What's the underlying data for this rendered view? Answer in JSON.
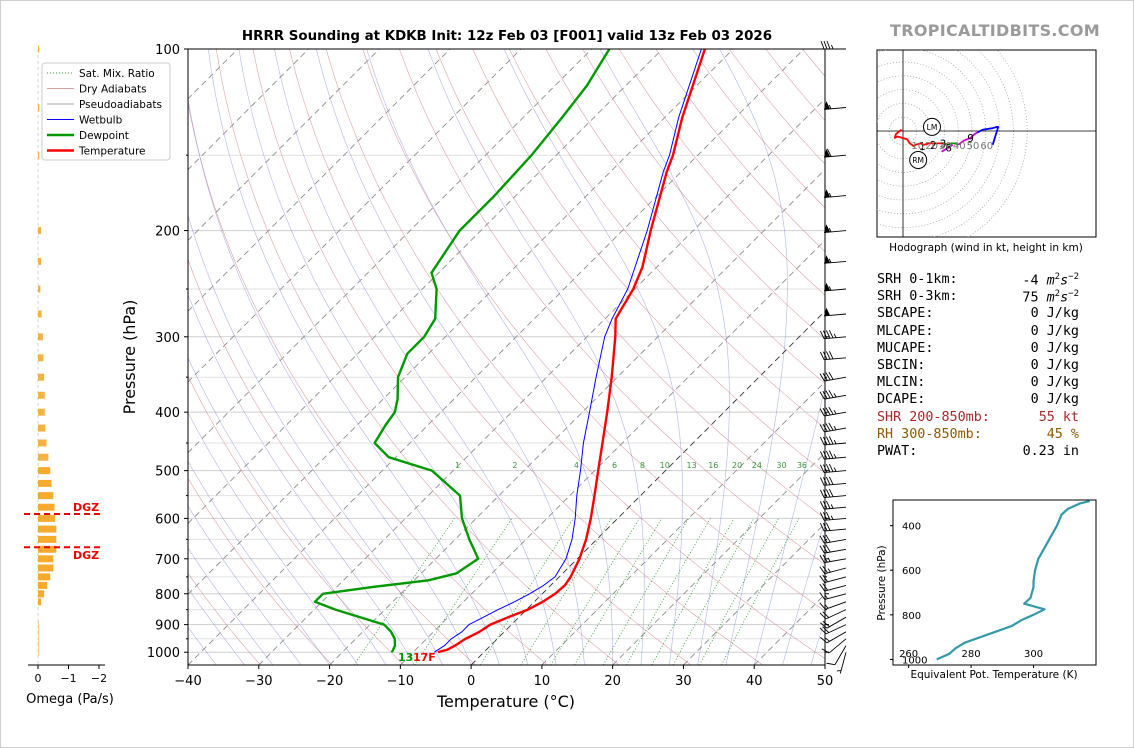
{
  "title": "HRRR Sounding at KDKB Init: 12z Feb 03 [F001] valid 13z Feb 03 2026",
  "brand": "TROPICALTIDBITS.COM",
  "colors": {
    "temperature": "#ff0000",
    "dewpoint": "#009900",
    "wetbulb": "#0000ff",
    "dgz": "#ee0000",
    "omega_bar": "#f5a623",
    "theta_e": "#3399aa",
    "shr": "#a52a2a",
    "rh": "#8b5a00"
  },
  "chart_data": [
    {
      "type": "line",
      "name": "skew-t",
      "xlabel": "Temperature (°C)",
      "ylabel": "Pressure (hPa)",
      "xlim": [
        -40,
        50
      ],
      "ylim": [
        1050,
        100
      ],
      "y_scale": "log",
      "x_ticks": [
        "−40",
        "−30",
        "−20",
        "−10",
        "0",
        "10",
        "20",
        "30",
        "40",
        "50"
      ],
      "y_ticks": [
        "100",
        "200",
        "300",
        "400",
        "500",
        "600",
        "700",
        "800",
        "900",
        "1000"
      ],
      "legend": {
        "placement": "top-left",
        "entries": [
          "Sat. Mix. Ratio",
          "Dry Adiabats",
          "Pseudoadiabats",
          "Wetbulb",
          "Dewpoint",
          "Temperature"
        ]
      },
      "mixing_ratio_labels": [
        "1",
        "2",
        "4",
        "6",
        "8",
        "10",
        "13",
        "16",
        "20",
        "24",
        "30",
        "36"
      ],
      "surface_labels": {
        "dewpoint": "13",
        "temperature": "17F"
      },
      "series": [
        {
          "name": "Temperature",
          "points": [
            [
              1000,
              -6.5
            ],
            [
              990,
              -5.5
            ],
            [
              975,
              -5
            ],
            [
              950,
              -4.5
            ],
            [
              925,
              -3.5
            ],
            [
              900,
              -3
            ],
            [
              875,
              -1.5
            ],
            [
              850,
              0.2
            ],
            [
              825,
              1.2
            ],
            [
              800,
              1.8
            ],
            [
              775,
              2
            ],
            [
              750,
              1.6
            ],
            [
              700,
              0.3
            ],
            [
              650,
              -1.5
            ],
            [
              600,
              -3.8
            ],
            [
              550,
              -6.5
            ],
            [
              500,
              -9.5
            ],
            [
              450,
              -12.8
            ],
            [
              400,
              -16.5
            ],
            [
              350,
              -20.8
            ],
            [
              300,
              -26
            ],
            [
              280,
              -28.5
            ],
            [
              250,
              -30.2
            ],
            [
              230,
              -32
            ],
            [
              200,
              -36
            ],
            [
              160,
              -42
            ],
            [
              150,
              -43.5
            ],
            [
              130,
              -47.5
            ],
            [
              100,
              -54
            ]
          ]
        },
        {
          "name": "Dewpoint",
          "points": [
            [
              1000,
              -13
            ],
            [
              975,
              -13.5
            ],
            [
              950,
              -14.5
            ],
            [
              925,
              -16
            ],
            [
              900,
              -18
            ],
            [
              850,
              -27
            ],
            [
              825,
              -31
            ],
            [
              800,
              -31
            ],
            [
              780,
              -25
            ],
            [
              760,
              -18
            ],
            [
              740,
              -15
            ],
            [
              700,
              -14
            ],
            [
              650,
              -18
            ],
            [
              600,
              -22
            ],
            [
              550,
              -25.5
            ],
            [
              500,
              -33
            ],
            [
              475,
              -41
            ],
            [
              450,
              -45
            ],
            [
              420,
              -46
            ],
            [
              400,
              -46.5
            ],
            [
              380,
              -48
            ],
            [
              350,
              -51
            ],
            [
              320,
              -53
            ],
            [
              300,
              -53
            ],
            [
              280,
              -54
            ],
            [
              250,
              -58
            ],
            [
              235,
              -61
            ],
            [
              200,
              -63
            ],
            [
              175,
              -63
            ],
            [
              150,
              -63.5
            ],
            [
              130,
              -64.5
            ],
            [
              115,
              -65.5
            ],
            [
              100,
              -67.5
            ]
          ]
        },
        {
          "name": "Wetbulb",
          "points": [
            [
              1000,
              -7
            ],
            [
              975,
              -6.5
            ],
            [
              950,
              -6.5
            ],
            [
              925,
              -6
            ],
            [
              900,
              -6
            ],
            [
              875,
              -5
            ],
            [
              850,
              -4
            ],
            [
              825,
              -2.8
            ],
            [
              800,
              -1.8
            ],
            [
              775,
              -1
            ],
            [
              750,
              -0.6
            ],
            [
              700,
              -1.6
            ],
            [
              650,
              -3.5
            ],
            [
              600,
              -6
            ],
            [
              550,
              -9
            ],
            [
              500,
              -12
            ],
            [
              450,
              -15.5
            ],
            [
              400,
              -19
            ],
            [
              350,
              -23
            ],
            [
              300,
              -27.5
            ],
            [
              280,
              -29
            ],
            [
              250,
              -31
            ],
            [
              200,
              -36.5
            ],
            [
              160,
              -42.5
            ],
            [
              150,
              -44
            ],
            [
              130,
              -48
            ],
            [
              100,
              -54.5
            ]
          ]
        }
      ]
    },
    {
      "type": "bar",
      "name": "omega",
      "xlabel": "Omega (Pa/s)",
      "x_ticks": [
        "0",
        "−1",
        "−2"
      ],
      "dgz_label": "DGZ",
      "dgz_bounds_hpa": [
        590,
        670
      ],
      "values": [
        [
          1000,
          0.01
        ],
        [
          975,
          0.01
        ],
        [
          950,
          0.01
        ],
        [
          925,
          0.01
        ],
        [
          900,
          0.01
        ],
        [
          875,
          0.0
        ],
        [
          850,
          0.0
        ],
        [
          825,
          0.05
        ],
        [
          800,
          0.1
        ],
        [
          775,
          0.15
        ],
        [
          750,
          0.2
        ],
        [
          725,
          0.25
        ],
        [
          700,
          0.25
        ],
        [
          675,
          0.3
        ],
        [
          650,
          0.3
        ],
        [
          625,
          0.3
        ],
        [
          600,
          0.28
        ],
        [
          575,
          0.27
        ],
        [
          550,
          0.25
        ],
        [
          525,
          0.22
        ],
        [
          500,
          0.2
        ],
        [
          475,
          0.17
        ],
        [
          450,
          0.14
        ],
        [
          425,
          0.12
        ],
        [
          400,
          0.11
        ],
        [
          375,
          0.11
        ],
        [
          350,
          0.1
        ],
        [
          325,
          0.09
        ],
        [
          300,
          0.08
        ],
        [
          275,
          0.06
        ],
        [
          250,
          0.04
        ],
        [
          225,
          0.05
        ],
        [
          200,
          0.05
        ],
        [
          150,
          0.02
        ],
        [
          125,
          0.02
        ],
        [
          100,
          0.02
        ]
      ]
    },
    {
      "type": "line",
      "name": "hodograph",
      "caption": "Hodograph (wind in kt, height in km)",
      "ring_labels": [
        "10",
        "20",
        "30",
        "40",
        "50",
        "60"
      ],
      "height_labels": [
        "1",
        "2",
        "3",
        "6",
        "9"
      ],
      "motion_labels": [
        "LM",
        "RM"
      ],
      "segments": [
        {
          "color": "#ff0000",
          "points": [
            [
              -1,
              1
            ],
            [
              -5,
              -2
            ],
            [
              -6,
              -5
            ],
            [
              -4,
              -4
            ],
            [
              3,
              -6
            ],
            [
              5,
              -9
            ],
            [
              8,
              -11
            ],
            [
              9,
              -10
            ],
            [
              13,
              -9
            ],
            [
              15,
              -10
            ],
            [
              19,
              -9
            ],
            [
              25,
              -9
            ],
            [
              30,
              -9
            ]
          ]
        },
        {
          "color": "#009900",
          "points": [
            [
              30,
              -9
            ],
            [
              33,
              -10
            ],
            [
              35,
              -9
            ],
            [
              38,
              -9
            ],
            [
              40,
              -10
            ]
          ]
        },
        {
          "color": "#cc00cc",
          "points": [
            [
              40,
              -10
            ],
            [
              44,
              -7
            ],
            [
              49,
              -5
            ],
            [
              52,
              -2
            ],
            [
              54,
              -1
            ]
          ]
        },
        {
          "color": "#0000ff",
          "points": [
            [
              54,
              -1
            ],
            [
              58,
              1
            ],
            [
              65,
              2
            ],
            [
              68,
              3
            ],
            [
              69,
              3
            ],
            [
              65,
              -10
            ]
          ]
        }
      ],
      "markers": [
        [
          14,
          -11
        ],
        [
          22,
          -10
        ],
        [
          29,
          -9
        ],
        [
          33,
          -12
        ],
        [
          49,
          -5
        ]
      ],
      "extra_segment": {
        "color": "#cc00cc",
        "points": [
          [
            28,
            -15
          ],
          [
            33,
            -12
          ],
          [
            36,
            -10
          ]
        ]
      },
      "lm": [
        21,
        3
      ],
      "rm": [
        11,
        -21
      ]
    },
    {
      "type": "line",
      "name": "theta-e",
      "xlabel": "Equivalent Pot. Temperature (K)",
      "ylabel": "Pressure (hPa)",
      "xlim": [
        255,
        320
      ],
      "ylim": [
        1025,
        285
      ],
      "x_ticks": [
        "260",
        "280",
        "300"
      ],
      "y_ticks": [
        "400",
        "600",
        "800",
        "1000"
      ],
      "points": [
        [
          1000,
          269
        ],
        [
          975,
          273
        ],
        [
          950,
          275
        ],
        [
          925,
          278
        ],
        [
          900,
          283
        ],
        [
          875,
          288
        ],
        [
          850,
          293
        ],
        [
          825,
          296
        ],
        [
          800,
          300
        ],
        [
          775,
          303.5
        ],
        [
          750,
          297
        ],
        [
          725,
          299
        ],
        [
          700,
          299.5
        ],
        [
          675,
          300
        ],
        [
          650,
          300
        ],
        [
          600,
          300.5
        ],
        [
          550,
          301.5
        ],
        [
          500,
          303.5
        ],
        [
          450,
          305.5
        ],
        [
          400,
          307.5
        ],
        [
          350,
          309
        ],
        [
          325,
          311
        ],
        [
          300,
          315
        ],
        [
          290,
          318
        ]
      ]
    }
  ],
  "stats": [
    {
      "label": "SRH 0-1km:",
      "value": "-4",
      "unit": "m2s-2"
    },
    {
      "label": "SRH 0-3km:",
      "value": "75",
      "unit": "m2s-2"
    },
    {
      "label": "SBCAPE:",
      "value": "0 J/kg"
    },
    {
      "label": "MLCAPE:",
      "value": "0 J/kg"
    },
    {
      "label": "MUCAPE:",
      "value": "0 J/kg"
    },
    {
      "label": "SBCIN:",
      "value": "0 J/kg"
    },
    {
      "label": "MLCIN:",
      "value": "0 J/kg"
    },
    {
      "label": "DCAPE:",
      "value": "0 J/kg"
    },
    {
      "label": "SHR 200-850mb:",
      "value": "55 kt",
      "color": "#a52a2a"
    },
    {
      "label": "RH 300-850mb:",
      "value": "45 %",
      "color": "#8b5a00"
    },
    {
      "label": "PWAT:",
      "value": "0.23 in"
    }
  ],
  "wind_barbs": [
    [
      1000,
      195,
      5
    ],
    [
      975,
      210,
      10
    ],
    [
      950,
      230,
      10
    ],
    [
      925,
      240,
      15
    ],
    [
      900,
      245,
      20
    ],
    [
      875,
      240,
      20
    ],
    [
      850,
      245,
      20
    ],
    [
      825,
      250,
      15
    ],
    [
      800,
      255,
      15
    ],
    [
      775,
      255,
      20
    ],
    [
      750,
      255,
      20
    ],
    [
      725,
      255,
      25
    ],
    [
      700,
      260,
      25
    ],
    [
      675,
      260,
      30
    ],
    [
      650,
      260,
      30
    ],
    [
      625,
      265,
      30
    ],
    [
      600,
      265,
      35
    ],
    [
      575,
      265,
      35
    ],
    [
      550,
      265,
      40
    ],
    [
      525,
      265,
      40
    ],
    [
      500,
      265,
      45
    ],
    [
      475,
      265,
      45
    ],
    [
      450,
      265,
      45
    ],
    [
      425,
      260,
      45
    ],
    [
      400,
      260,
      45
    ],
    [
      375,
      260,
      45
    ],
    [
      350,
      260,
      40
    ],
    [
      325,
      265,
      40
    ],
    [
      300,
      265,
      45
    ],
    [
      275,
      265,
      50
    ],
    [
      250,
      265,
      55
    ],
    [
      225,
      265,
      55
    ],
    [
      200,
      265,
      55
    ],
    [
      175,
      265,
      55
    ],
    [
      150,
      265,
      60
    ],
    [
      125,
      265,
      55
    ],
    [
      100,
      270,
      35
    ]
  ]
}
